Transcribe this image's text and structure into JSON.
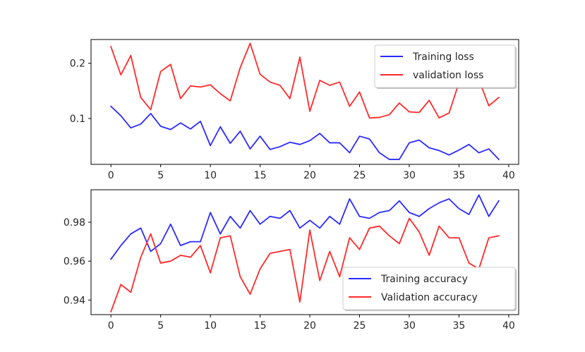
{
  "colors": {
    "training": "#2a2aff",
    "validation": "#ff2a2a",
    "axes": "#000000",
    "legend_border": "#cccccc"
  },
  "chart_data": [
    {
      "type": "line",
      "title": "",
      "xlabel": "",
      "ylabel": "",
      "xlim": [
        -2,
        41
      ],
      "ylim": [
        0.017,
        0.243
      ],
      "xticks": [
        0,
        5,
        10,
        15,
        20,
        25,
        30,
        35,
        40
      ],
      "yticks": [
        0.1,
        0.2
      ],
      "xtick_labels": [
        "0",
        "5",
        "10",
        "15",
        "20",
        "25",
        "30",
        "35",
        "40"
      ],
      "ytick_labels": [
        "0.1",
        "0.2"
      ],
      "grid": false,
      "legend": "top-right",
      "x": [
        0,
        1,
        2,
        3,
        4,
        5,
        6,
        7,
        8,
        9,
        10,
        11,
        12,
        13,
        14,
        15,
        16,
        17,
        18,
        19,
        20,
        21,
        22,
        23,
        24,
        25,
        26,
        27,
        28,
        29,
        30,
        31,
        32,
        33,
        34,
        35,
        36,
        37,
        38,
        39
      ],
      "series": [
        {
          "name": "Training loss",
          "color": "#2a2aff",
          "values": [
            0.122,
            0.105,
            0.083,
            0.09,
            0.109,
            0.086,
            0.08,
            0.092,
            0.081,
            0.095,
            0.051,
            0.085,
            0.055,
            0.077,
            0.045,
            0.068,
            0.044,
            0.049,
            0.057,
            0.053,
            0.06,
            0.073,
            0.056,
            0.056,
            0.038,
            0.068,
            0.063,
            0.038,
            0.026,
            0.026,
            0.056,
            0.061,
            0.047,
            0.042,
            0.034,
            0.043,
            0.053,
            0.038,
            0.045,
            0.026
          ]
        },
        {
          "name": "validation loss",
          "color": "#ff2a2a",
          "values": [
            0.23,
            0.179,
            0.214,
            0.138,
            0.116,
            0.185,
            0.198,
            0.136,
            0.159,
            0.157,
            0.161,
            0.145,
            0.132,
            0.192,
            0.236,
            0.18,
            0.166,
            0.16,
            0.136,
            0.211,
            0.113,
            0.169,
            0.16,
            0.166,
            0.122,
            0.148,
            0.101,
            0.102,
            0.107,
            0.128,
            0.112,
            0.111,
            0.133,
            0.101,
            0.11,
            0.165,
            0.205,
            0.17,
            0.123,
            0.138
          ]
        }
      ]
    },
    {
      "type": "line",
      "title": "",
      "xlabel": "",
      "ylabel": "",
      "xlim": [
        -2,
        41
      ],
      "ylim": [
        0.9325,
        0.9967
      ],
      "xticks": [
        0,
        5,
        10,
        15,
        20,
        25,
        30,
        35,
        40
      ],
      "yticks": [
        0.94,
        0.96,
        0.98
      ],
      "xtick_labels": [
        "0",
        "5",
        "10",
        "15",
        "20",
        "25",
        "30",
        "35",
        "40"
      ],
      "ytick_labels": [
        "0.94",
        "0.96",
        "0.98"
      ],
      "grid": false,
      "legend": "bottom-right",
      "x": [
        0,
        1,
        2,
        3,
        4,
        5,
        6,
        7,
        8,
        9,
        10,
        11,
        12,
        13,
        14,
        15,
        16,
        17,
        18,
        19,
        20,
        21,
        22,
        23,
        24,
        25,
        26,
        27,
        28,
        29,
        30,
        31,
        32,
        33,
        34,
        35,
        36,
        37,
        38,
        39
      ],
      "series": [
        {
          "name": "Training accuracy",
          "color": "#2a2aff",
          "values": [
            0.961,
            0.968,
            0.974,
            0.977,
            0.965,
            0.969,
            0.979,
            0.968,
            0.97,
            0.97,
            0.985,
            0.974,
            0.983,
            0.977,
            0.986,
            0.979,
            0.983,
            0.982,
            0.986,
            0.977,
            0.981,
            0.977,
            0.983,
            0.979,
            0.992,
            0.983,
            0.982,
            0.985,
            0.986,
            0.991,
            0.985,
            0.983,
            0.987,
            0.99,
            0.992,
            0.987,
            0.984,
            0.994,
            0.983,
            0.991
          ]
        },
        {
          "name": "Validation accuracy",
          "color": "#ff2a2a",
          "values": [
            0.934,
            0.948,
            0.944,
            0.962,
            0.974,
            0.959,
            0.96,
            0.963,
            0.962,
            0.968,
            0.954,
            0.972,
            0.973,
            0.952,
            0.943,
            0.956,
            0.964,
            0.965,
            0.966,
            0.939,
            0.976,
            0.95,
            0.965,
            0.952,
            0.972,
            0.966,
            0.977,
            0.978,
            0.973,
            0.969,
            0.982,
            0.975,
            0.963,
            0.978,
            0.972,
            0.972,
            0.959,
            0.956,
            0.972,
            0.973
          ]
        }
      ]
    }
  ]
}
